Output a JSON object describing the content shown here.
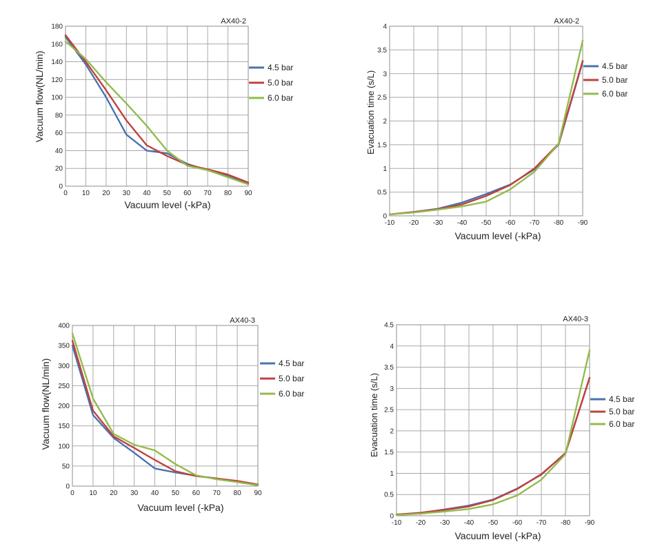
{
  "colors": {
    "series_4_5": "#4a72b0",
    "series_5_0": "#c0423c",
    "series_6_0": "#93bb4c"
  },
  "chart_data": [
    {
      "id": "flow-ax40-2",
      "type": "line",
      "title": "AX40-2",
      "xlabel": "Vacuum level (-kPa)",
      "ylabel": "Vacuum flow(NL/min)",
      "x": [
        0,
        10,
        20,
        30,
        40,
        50,
        60,
        70,
        80,
        90
      ],
      "x_tick_labels": [
        "0",
        "10",
        "20",
        "30",
        "40",
        "50",
        "60",
        "70",
        "80",
        "90"
      ],
      "ylim": [
        0,
        180
      ],
      "y_ticks": [
        0,
        20,
        40,
        60,
        80,
        100,
        120,
        140,
        160,
        180
      ],
      "grid": true,
      "legend": "right",
      "series": [
        {
          "name": "4.5 bar",
          "color_key": "series_4_5",
          "values": [
            168,
            137,
            100,
            58,
            40,
            37,
            25,
            18,
            11,
            3
          ]
        },
        {
          "name": "5.0 bar",
          "color_key": "series_5_0",
          "values": [
            170,
            140,
            108,
            74,
            46,
            34,
            24,
            19,
            13,
            4
          ]
        },
        {
          "name": "6.0 bar",
          "color_key": "series_6_0",
          "values": [
            163,
            143,
            117,
            93,
            68,
            40,
            23,
            18,
            10,
            2
          ]
        }
      ]
    },
    {
      "id": "evac-ax40-2",
      "type": "line",
      "title": "AX40-2",
      "xlabel": "Vacuum level (-kPa)",
      "ylabel": "Evacuation time (s/L)",
      "x": [
        -10,
        -20,
        -30,
        -40,
        -50,
        -60,
        -70,
        -80,
        -90
      ],
      "x_tick_labels": [
        "-10",
        "-20",
        "-30",
        "-40",
        "-50",
        "-60",
        "-70",
        "-80",
        "-90"
      ],
      "ylim": [
        0,
        4
      ],
      "y_ticks": [
        0,
        0.5,
        1,
        1.5,
        2,
        2.5,
        3,
        3.5,
        4
      ],
      "grid": true,
      "legend": "right",
      "series": [
        {
          "name": "4.5 bar",
          "color_key": "series_4_5",
          "values": [
            0.03,
            0.08,
            0.15,
            0.28,
            0.46,
            0.66,
            0.98,
            1.5,
            3.25
          ]
        },
        {
          "name": "5.0 bar",
          "color_key": "series_5_0",
          "values": [
            0.03,
            0.08,
            0.14,
            0.24,
            0.42,
            0.65,
            1.0,
            1.52,
            3.27
          ]
        },
        {
          "name": "6.0 bar",
          "color_key": "series_6_0",
          "values": [
            0.03,
            0.07,
            0.13,
            0.2,
            0.3,
            0.56,
            0.93,
            1.52,
            3.7
          ]
        }
      ]
    },
    {
      "id": "flow-ax40-3",
      "type": "line",
      "title": "AX40-3",
      "xlabel": "Vacuum level (-kPa)",
      "ylabel": "Vacuum flow(NL/min)",
      "x": [
        0,
        10,
        20,
        30,
        40,
        50,
        60,
        70,
        80,
        90
      ],
      "x_tick_labels": [
        "0",
        "10",
        "20",
        "30",
        "40",
        "50",
        "60",
        "70",
        "80",
        "90"
      ],
      "ylim": [
        0,
        400
      ],
      "y_ticks": [
        0,
        50,
        100,
        150,
        200,
        250,
        300,
        350,
        400
      ],
      "grid": true,
      "legend": "right",
      "series": [
        {
          "name": "4.5 bar",
          "color_key": "series_4_5",
          "values": [
            350,
            177,
            120,
            83,
            44,
            34,
            26,
            19,
            11,
            2
          ]
        },
        {
          "name": "5.0 bar",
          "color_key": "series_5_0",
          "values": [
            362,
            188,
            124,
            95,
            65,
            37,
            25,
            19,
            13,
            4
          ]
        },
        {
          "name": "6.0 bar",
          "color_key": "series_6_0",
          "values": [
            380,
            218,
            130,
            103,
            89,
            55,
            27,
            17,
            10,
            2
          ]
        }
      ]
    },
    {
      "id": "evac-ax40-3",
      "type": "line",
      "title": "AX40-3",
      "xlabel": "Vacuum level (-kPa)",
      "ylabel": "Evacuation time (s/L)",
      "x": [
        -10,
        -20,
        -30,
        -40,
        -50,
        -60,
        -70,
        -80,
        -90
      ],
      "x_tick_labels": [
        "-10",
        "-20",
        "-30",
        "-40",
        "-50",
        "-60",
        "-70",
        "-80",
        "-90"
      ],
      "ylim": [
        0,
        4.5
      ],
      "y_ticks": [
        0,
        0.5,
        1,
        1.5,
        2,
        2.5,
        3,
        3.5,
        4,
        4.5
      ],
      "grid": true,
      "legend": "right",
      "series": [
        {
          "name": "4.5 bar",
          "color_key": "series_4_5",
          "values": [
            0.03,
            0.07,
            0.15,
            0.24,
            0.38,
            0.64,
            0.97,
            1.48,
            3.25
          ]
        },
        {
          "name": "5.0 bar",
          "color_key": "series_5_0",
          "values": [
            0.03,
            0.07,
            0.14,
            0.22,
            0.37,
            0.63,
            0.98,
            1.47,
            3.25
          ]
        },
        {
          "name": "6.0 bar",
          "color_key": "series_6_0",
          "values": [
            0.02,
            0.05,
            0.1,
            0.16,
            0.27,
            0.48,
            0.85,
            1.45,
            3.9
          ]
        }
      ]
    }
  ]
}
